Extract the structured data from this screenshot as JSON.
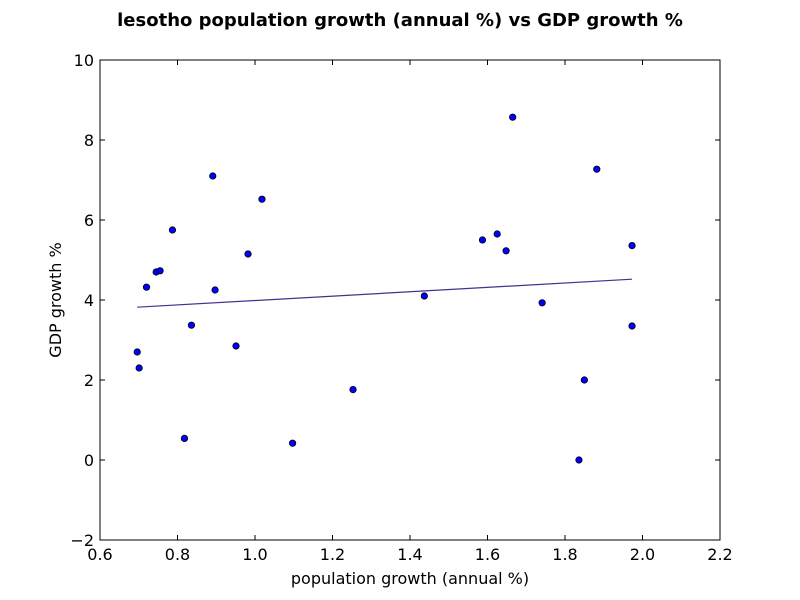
{
  "chart_data": {
    "type": "scatter",
    "title": "lesotho population growth (annual %) vs GDP growth %",
    "xlabel": "population growth (annual %)",
    "ylabel": "GDP growth %",
    "xlim": [
      0.6,
      2.2
    ],
    "ylim": [
      -2,
      10
    ],
    "xticks": [
      "0.6",
      "0.8",
      "1.0",
      "1.2",
      "1.4",
      "1.6",
      "1.8",
      "2.0",
      "2.2"
    ],
    "yticks": [
      "−2",
      "0",
      "2",
      "4",
      "6",
      "8",
      "10"
    ],
    "grid": false,
    "points": [
      {
        "x": 0.696,
        "y": 2.7
      },
      {
        "x": 0.701,
        "y": 2.3
      },
      {
        "x": 0.72,
        "y": 4.32
      },
      {
        "x": 0.745,
        "y": 4.7
      },
      {
        "x": 0.755,
        "y": 4.73
      },
      {
        "x": 0.787,
        "y": 5.75
      },
      {
        "x": 0.818,
        "y": 0.54
      },
      {
        "x": 0.836,
        "y": 3.37
      },
      {
        "x": 0.891,
        "y": 7.1
      },
      {
        "x": 0.897,
        "y": 4.25
      },
      {
        "x": 0.951,
        "y": 2.85
      },
      {
        "x": 0.982,
        "y": 5.15
      },
      {
        "x": 1.018,
        "y": 6.52
      },
      {
        "x": 1.097,
        "y": 0.42
      },
      {
        "x": 1.253,
        "y": 1.76
      },
      {
        "x": 1.437,
        "y": 4.1
      },
      {
        "x": 1.587,
        "y": 5.5
      },
      {
        "x": 1.625,
        "y": 5.65
      },
      {
        "x": 1.648,
        "y": 5.23
      },
      {
        "x": 1.665,
        "y": 8.57
      },
      {
        "x": 1.741,
        "y": 3.93
      },
      {
        "x": 1.836,
        "y": 0.0
      },
      {
        "x": 1.85,
        "y": 2.0
      },
      {
        "x": 1.882,
        "y": 7.27
      },
      {
        "x": 1.973,
        "y": 5.36
      },
      {
        "x": 1.973,
        "y": 3.35
      }
    ],
    "trendline": {
      "x": [
        0.696,
        1.973
      ],
      "y": [
        3.82,
        4.52
      ],
      "color": "#4b2d8f"
    },
    "marker_color": "#0000ff"
  }
}
